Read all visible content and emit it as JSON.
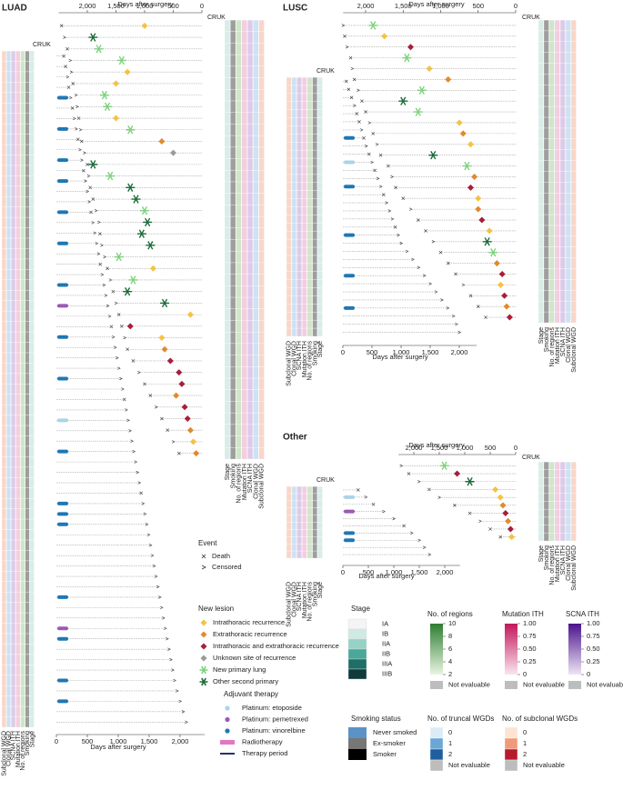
{
  "chart_data": [
    {
      "type": "swimmer",
      "title": "LUAD",
      "x_label": "Days after surgery",
      "id_header": "CRUK",
      "xlim": [
        0,
        2500
      ],
      "xticks": [
        {
          "value": 2000,
          "label": "2,000"
        },
        {
          "value": 1500,
          "label": "1,500"
        },
        {
          "value": 1000,
          "label": "1,000"
        },
        500,
        0
      ],
      "values": [
        2450,
        2400,
        2350,
        2300,
        2280,
        2250,
        2200,
        2180,
        2150,
        2120,
        2100,
        2050,
        2000,
        1980,
        1950,
        1900,
        1850,
        1800,
        1780,
        1750,
        1700,
        1650,
        1600,
        1550,
        1500,
        1450,
        1400,
        1350,
        1300,
        1200,
        1100,
        1000,
        900,
        800,
        700,
        600,
        500,
        400
      ],
      "lesion_days": [
        1000,
        1900,
        1800,
        1400,
        1300,
        1500,
        1700,
        1650,
        1500,
        1250,
        700,
        500,
        1900,
        1600,
        1250,
        1150,
        1000,
        950,
        1050,
        900,
        1450,
        850,
        1200,
        1300,
        650,
        200,
        1250,
        700,
        650,
        550,
        400,
        350,
        450,
        300,
        250,
        200,
        150,
        100
      ],
      "lesion_type": [
        0,
        5,
        4,
        4,
        0,
        0,
        4,
        4,
        0,
        4,
        1,
        3,
        5,
        4,
        5,
        5,
        4,
        5,
        5,
        5,
        4,
        0,
        4,
        5,
        5,
        0,
        2,
        0,
        1,
        2,
        2,
        2,
        1,
        2,
        2,
        1,
        0,
        1
      ],
      "death": [
        true,
        false,
        true,
        false,
        false,
        true,
        false,
        false,
        true,
        false,
        true,
        false,
        true,
        false,
        true,
        true,
        false,
        false,
        true,
        false,
        false,
        true,
        false,
        true,
        false,
        true,
        true,
        false,
        true,
        true,
        false,
        true,
        true,
        false,
        true,
        true,
        false,
        true
      ]
    },
    {
      "type": "swimmer",
      "x_label": "Days after surgery",
      "id_header": "CRUK",
      "xlim": [
        0,
        2400
      ],
      "xticks": [
        0,
        500,
        {
          "value": 1000,
          "label": "1,000"
        },
        {
          "value": 1500,
          "label": "1,500"
        },
        {
          "value": 2000,
          "label": "2,000"
        }
      ],
      "values": [
        120,
        150,
        180,
        200,
        230,
        260,
        290,
        320,
        350,
        380,
        410,
        440,
        470,
        500,
        530,
        560,
        590,
        620,
        650,
        680,
        710,
        740,
        770,
        800,
        830,
        860,
        890,
        920,
        950,
        980,
        1010,
        1040,
        1070,
        1100,
        1130,
        1160,
        1190,
        1220,
        1250,
        1280,
        1310,
        1340,
        1370,
        1400,
        1430,
        1460,
        1490,
        1520,
        1550,
        1580,
        1610,
        1640,
        1670,
        1700,
        1730,
        1760,
        1790,
        1820,
        1850,
        1880,
        1910,
        1950,
        2000,
        2050,
        2100
      ],
      "death": [
        true,
        true,
        false,
        true,
        false,
        true,
        false,
        false,
        true,
        false,
        false,
        true,
        false,
        false,
        false,
        true,
        false,
        false,
        false,
        false,
        true,
        false,
        false,
        false,
        false,
        false,
        true,
        false,
        false,
        false,
        false,
        false,
        false,
        true,
        false,
        false,
        false,
        false,
        false,
        false,
        false,
        false,
        true,
        false,
        false,
        false,
        false,
        false,
        false,
        false,
        false,
        false,
        false,
        false,
        false,
        false,
        false,
        false,
        false,
        false,
        false,
        false,
        false,
        false,
        false
      ],
      "therapy": [
        null,
        null,
        null,
        null,
        2,
        null,
        null,
        2,
        null,
        null,
        2,
        null,
        2,
        null,
        null,
        2,
        null,
        null,
        2,
        null,
        null,
        null,
        2,
        null,
        1,
        null,
        null,
        2,
        null,
        null,
        null,
        2,
        null,
        null,
        null,
        0,
        null,
        null,
        2,
        null,
        null,
        null,
        null,
        2,
        2,
        2,
        null,
        null,
        null,
        null,
        null,
        null,
        2,
        null,
        null,
        1,
        2,
        null,
        null,
        null,
        2,
        null,
        2,
        null,
        null
      ]
    },
    {
      "type": "swimmer",
      "title": "LUSC",
      "x_label": "Days after surgery",
      "id_header": "CRUK",
      "xlim": [
        0,
        2300
      ],
      "xticks": [
        {
          "value": 2000,
          "label": "2,000"
        },
        {
          "value": 1500,
          "label": "1,500"
        },
        {
          "value": 1000,
          "label": "1,000"
        },
        500,
        0
      ],
      "values": [
        2300,
        2280,
        2250,
        2200,
        2180,
        2150,
        2100,
        2050,
        2000,
        1950,
        1900,
        1850,
        1800,
        1700,
        1650,
        1600,
        1500,
        1400,
        1300,
        1200,
        1100,
        1000,
        900,
        800,
        700,
        600,
        500,
        400
      ],
      "lesion_days": [
        1900,
        1750,
        1400,
        1450,
        1150,
        900,
        1250,
        1500,
        1300,
        750,
        700,
        600,
        1100,
        650,
        550,
        600,
        500,
        500,
        450,
        350,
        380,
        300,
        250,
        180,
        200,
        150,
        120,
        80
      ],
      "lesion_type": [
        4,
        0,
        2,
        4,
        0,
        1,
        4,
        5,
        4,
        0,
        1,
        0,
        5,
        4,
        1,
        2,
        0,
        1,
        2,
        0,
        5,
        4,
        1,
        2,
        0,
        2,
        1,
        2
      ],
      "death": [
        false,
        true,
        false,
        true,
        false,
        true,
        false,
        true,
        true,
        false,
        true,
        false,
        true,
        true,
        false,
        true,
        true,
        false,
        true,
        true,
        false,
        true,
        true,
        true,
        false,
        true,
        true,
        true
      ]
    },
    {
      "type": "swimmer",
      "x_label": "Days after surgery",
      "id_header": "CRUK",
      "xlim": [
        0,
        2300
      ],
      "xticks": [
        0,
        500,
        {
          "value": 1000,
          "label": "1,000"
        },
        {
          "value": 1500,
          "label": "1,500"
        },
        {
          "value": 2000,
          "label": "2,000"
        }
      ],
      "values": [
        60,
        100,
        150,
        200,
        240,
        280,
        320,
        360,
        400,
        450,
        500,
        550,
        600,
        650,
        700,
        750,
        800,
        850,
        900,
        950,
        1000,
        1100,
        1200,
        1300,
        1400,
        1500,
        1600,
        1700,
        1800,
        1900,
        1950,
        2000
      ],
      "death": [
        true,
        true,
        true,
        false,
        true,
        true,
        false,
        true,
        false,
        true,
        false,
        true,
        false,
        false,
        true,
        false,
        false,
        false,
        true,
        false,
        false,
        false,
        false,
        false,
        false,
        false,
        false,
        false,
        false,
        false,
        false,
        false
      ],
      "therapy": [
        null,
        null,
        null,
        null,
        null,
        null,
        null,
        2,
        null,
        null,
        0,
        null,
        null,
        2,
        null,
        null,
        null,
        null,
        null,
        2,
        null,
        null,
        null,
        null,
        2,
        null,
        null,
        null,
        2,
        null,
        null,
        null
      ]
    },
    {
      "type": "swimmer",
      "title": "Other",
      "x_label": "Days after surgery",
      "id_header": "CRUK",
      "xlim": [
        0,
        2300
      ],
      "xticks": [
        {
          "value": 2000,
          "label": "2,000"
        },
        {
          "value": 1500,
          "label": "1,500"
        },
        {
          "value": 1000,
          "label": "1,000"
        },
        500,
        0
      ],
      "values": [
        2250,
        2100,
        1900,
        1700,
        1500,
        1200,
        900,
        700,
        500,
        300
      ],
      "lesion_days": [
        1400,
        1150,
        900,
        400,
        300,
        250,
        200,
        150,
        100,
        80
      ],
      "lesion_type": [
        4,
        2,
        5,
        0,
        0,
        1,
        2,
        1,
        2,
        0
      ],
      "death": [
        false,
        true,
        false,
        true,
        false,
        true,
        true,
        false,
        true,
        true
      ]
    },
    {
      "type": "swimmer",
      "x_label": "Days after surgery",
      "id_header": "CRUK",
      "xlim": [
        0,
        2300
      ],
      "xticks": [
        0,
        500,
        {
          "value": 1000,
          "label": "1,000"
        },
        {
          "value": 1500,
          "label": "1,500"
        },
        {
          "value": 2000,
          "label": "2,000"
        }
      ],
      "values": [
        300,
        450,
        600,
        800,
        1000,
        1200,
        1350,
        1500,
        1600,
        1700
      ],
      "death": [
        true,
        false,
        true,
        false,
        false,
        true,
        false,
        false,
        false,
        false
      ],
      "therapy": [
        null,
        0,
        null,
        1,
        null,
        null,
        2,
        2,
        null,
        null
      ]
    }
  ],
  "heatmap_columns": [
    "Stage",
    "Smoking",
    "No. of regions",
    "Mutation ITH",
    "SCNA ITH",
    "Clonal WGD",
    "Subclonal WGD"
  ],
  "legend": {
    "event": {
      "title": "Event",
      "items": [
        "Death",
        "Censored"
      ]
    },
    "new_lesion": {
      "title": "New lesion",
      "items": [
        {
          "name": "Intrathoracic recurrence",
          "color": "#f5c242"
        },
        {
          "name": "Extrathoracic recurrence",
          "color": "#e08a2e"
        },
        {
          "name": "Intrathoracic and extrathoracic recurrence",
          "color": "#a81e3a"
        },
        {
          "name": "Unknown site of recurrence",
          "color": "#9a9a9a"
        },
        {
          "name": "New primary lung",
          "color": "#7fd17f"
        },
        {
          "name": "Other second primary",
          "color": "#1b6b3a"
        }
      ]
    },
    "adjuvant_therapy": {
      "title": "Adjuvant therapy",
      "items": [
        {
          "name": "Platinum: etoposide",
          "color": "#a9d4e8"
        },
        {
          "name": "Platinum: pemetrexed",
          "color": "#9b59b6"
        },
        {
          "name": "Platinum: vinorelbine",
          "color": "#1f77b4"
        },
        {
          "name": "Radiotherapy",
          "color": "#e377c2"
        },
        {
          "name": "Therapy period",
          "color": "#2b2d6e"
        }
      ]
    },
    "stage": {
      "title": "Stage",
      "items": [
        {
          "name": "IA",
          "color": "#f4f4f4"
        },
        {
          "name": "IB",
          "color": "#cfe9e3"
        },
        {
          "name": "IIA",
          "color": "#96d3c6"
        },
        {
          "name": "IIB",
          "color": "#4aa89a"
        },
        {
          "name": "IIIA",
          "color": "#1f6e68"
        },
        {
          "name": "IIIB",
          "color": "#0f3b3a"
        }
      ]
    },
    "smoking_status": {
      "title": "Smoking status",
      "items": [
        {
          "name": "Never smoked",
          "color": "#5b93c7"
        },
        {
          "name": "Ex-smoker",
          "color": "#777777"
        },
        {
          "name": "Smoker",
          "color": "#000000"
        }
      ]
    },
    "no_of_regions": {
      "title": "No. of regions",
      "range": [
        2,
        10
      ],
      "ticks": [
        10,
        8,
        6,
        4,
        2
      ],
      "colors": [
        "#2e7d32",
        "#e8f5e0"
      ],
      "na": "Not evaluable"
    },
    "mutation_ith": {
      "title": "Mutation ITH",
      "range": [
        0,
        1
      ],
      "ticks": [
        {
          "value": 1,
          "label": "1.00"
        },
        0.75,
        {
          "value": 0.5,
          "label": "0.50"
        },
        0.25,
        0
      ],
      "colors": [
        "#c2185b",
        "#fbe4ef"
      ],
      "na": "Not evaluable"
    },
    "scna_ith": {
      "title": "SCNA ITH",
      "range": [
        0,
        1
      ],
      "ticks": [
        {
          "value": 1,
          "label": "1.00"
        },
        0.75,
        {
          "value": 0.5,
          "label": "0.50"
        },
        0.25,
        0
      ],
      "colors": [
        "#4a148c",
        "#efe4f5"
      ],
      "na": "Not evaluable"
    },
    "truncal_wgd": {
      "title": "No. of truncal WGDs",
      "items": [
        {
          "name": "0",
          "color": "#dcecf7"
        },
        {
          "name": "1",
          "color": "#6aa6d6"
        },
        {
          "name": "2",
          "color": "#1f5f9e"
        },
        {
          "name": "Not evaluable",
          "color": "#bdbdbd"
        }
      ]
    },
    "subclonal_wgd": {
      "title": "No. of subclonal WGDs",
      "items": [
        {
          "name": "0",
          "color": "#fde3d3"
        },
        {
          "name": "1",
          "color": "#ef9a7a"
        },
        {
          "name": "2",
          "color": "#b71c2c"
        },
        {
          "name": "Not evaluable",
          "color": "#bdbdbd"
        }
      ]
    }
  }
}
